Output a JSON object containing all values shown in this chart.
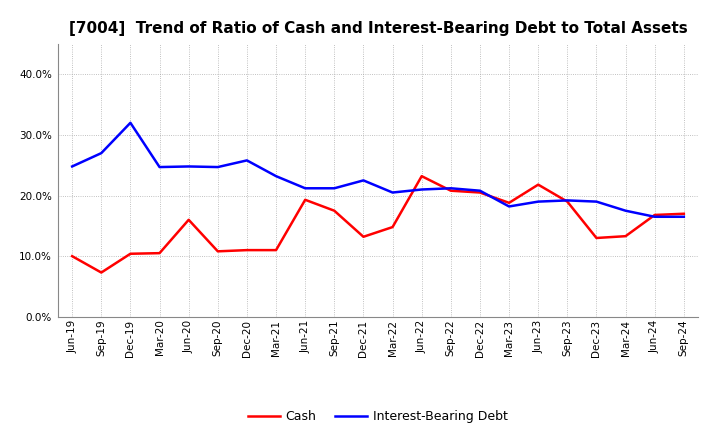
{
  "title": "[7004]  Trend of Ratio of Cash and Interest-Bearing Debt to Total Assets",
  "x_labels": [
    "Jun-19",
    "Sep-19",
    "Dec-19",
    "Mar-20",
    "Jun-20",
    "Sep-20",
    "Dec-20",
    "Mar-21",
    "Jun-21",
    "Sep-21",
    "Dec-21",
    "Mar-22",
    "Jun-22",
    "Sep-22",
    "Dec-22",
    "Mar-23",
    "Jun-23",
    "Sep-23",
    "Dec-23",
    "Mar-24",
    "Jun-24",
    "Sep-24"
  ],
  "cash": [
    0.1,
    0.073,
    0.104,
    0.105,
    0.16,
    0.108,
    0.11,
    0.11,
    0.193,
    0.175,
    0.132,
    0.148,
    0.232,
    0.208,
    0.205,
    0.188,
    0.218,
    0.19,
    0.13,
    0.133,
    0.168,
    0.17
  ],
  "ibd": [
    0.248,
    0.27,
    0.32,
    0.247,
    0.248,
    0.247,
    0.258,
    0.232,
    0.212,
    0.212,
    0.225,
    0.205,
    0.21,
    0.212,
    0.208,
    0.182,
    0.19,
    0.192,
    0.19,
    0.175,
    0.165,
    0.165
  ],
  "cash_color": "#ff0000",
  "ibd_color": "#0000ff",
  "ylim": [
    0.0,
    0.45
  ],
  "yticks": [
    0.0,
    0.1,
    0.2,
    0.3,
    0.4
  ],
  "background_color": "#ffffff",
  "plot_bg_color": "#ffffff",
  "grid_color": "#999999",
  "title_fontsize": 11,
  "tick_fontsize": 7.5,
  "legend_fontsize": 9,
  "line_width": 1.8
}
